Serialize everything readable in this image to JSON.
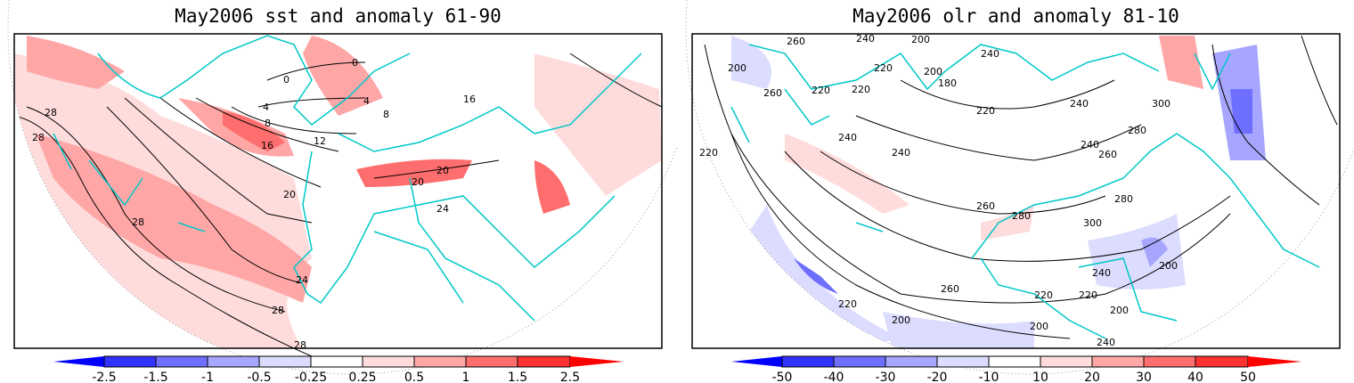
{
  "panels": [
    {
      "title": "May2006 sst and anomaly 61-90",
      "colorbar": {
        "labels": [
          "-2.5",
          "-1.5",
          "-1",
          "-0.5",
          "-0.25",
          "0.25",
          "0.5",
          "1",
          "1.5",
          "2.5"
        ]
      },
      "contour_labels": [
        "28",
        "28",
        "28",
        "24",
        "20",
        "16",
        "12",
        "8",
        "4",
        "0",
        "0",
        "4",
        "8",
        "16",
        "20",
        "20",
        "24",
        "28",
        "28"
      ]
    },
    {
      "title": "May2006 olr and anomaly 81-10",
      "colorbar": {
        "labels": [
          "-50",
          "-40",
          "-30",
          "-20",
          "-10",
          "10",
          "20",
          "30",
          "40",
          "50"
        ]
      },
      "contour_labels": [
        "260",
        "240",
        "200",
        "220",
        "200",
        "240",
        "220",
        "200",
        "180",
        "220",
        "260",
        "220",
        "240",
        "240",
        "220",
        "240",
        "260",
        "280",
        "300",
        "240",
        "260",
        "280",
        "300",
        "280",
        "200",
        "220",
        "240",
        "260",
        "220",
        "200",
        "240",
        "200",
        "220",
        "200",
        "240"
      ]
    }
  ],
  "colors": {
    "neg": [
      "#0000ff",
      "#3232ff",
      "#6e6eff",
      "#a6a6ff",
      "#dcdcff"
    ],
    "zero": "#ffffff",
    "pos": [
      "#ffdcdc",
      "#ffa6a6",
      "#ff6e6e",
      "#ff3232",
      "#ff0000"
    ],
    "coast": "#00c8c8",
    "contour": "#000000"
  }
}
